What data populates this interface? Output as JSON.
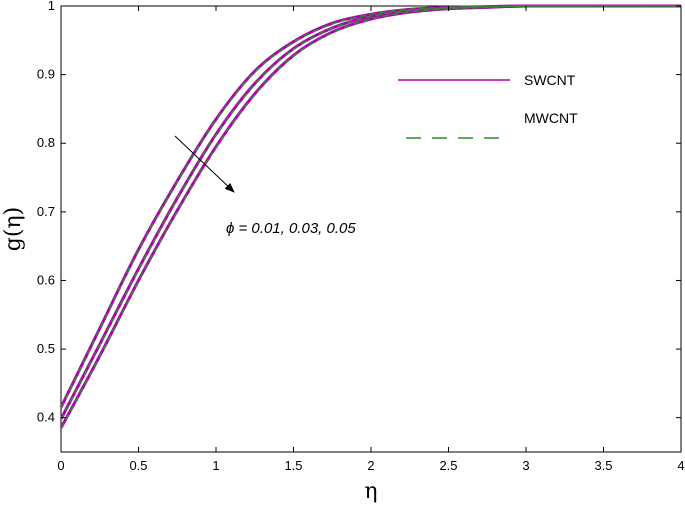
{
  "chart_data": {
    "type": "line",
    "xlabel": "η",
    "ylabel": "g(η)",
    "xlim": [
      0,
      4
    ],
    "ylim": [
      0.35,
      1
    ],
    "xticks": [
      "0",
      "0.5",
      "1",
      "1.5",
      "2",
      "2.5",
      "3",
      "3.5",
      "4"
    ],
    "yticks": [
      "0.4",
      "0.5",
      "0.6",
      "0.7",
      "0.8",
      "0.9",
      "1"
    ],
    "grid": false,
    "legend_position": "top-right",
    "annotation": "ϕ = 0.01, 0.03, 0.05",
    "x": [
      0,
      0.25,
      0.5,
      0.75,
      1,
      1.25,
      1.5,
      1.75,
      2,
      2.25,
      2.5,
      2.75,
      3,
      3.5,
      4
    ],
    "series": [
      {
        "name": "SWCNT",
        "group": "SWCNT",
        "phi": "0.01",
        "color": "#b000b0",
        "dash": "solid",
        "values": [
          0.415,
          0.53,
          0.645,
          0.745,
          0.835,
          0.905,
          0.948,
          0.975,
          0.988,
          0.995,
          0.998,
          0.999,
          1.0,
          1.0,
          1.0
        ]
      },
      {
        "name": "SWCNT",
        "group": "SWCNT",
        "phi": "0.03",
        "color": "#b000b0",
        "dash": "solid",
        "values": [
          0.398,
          0.507,
          0.617,
          0.72,
          0.813,
          0.887,
          0.938,
          0.968,
          0.985,
          0.993,
          0.997,
          0.999,
          1.0,
          1.0,
          1.0
        ]
      },
      {
        "name": "SWCNT",
        "group": "SWCNT",
        "phi": "0.05",
        "color": "#b000b0",
        "dash": "solid",
        "values": [
          0.385,
          0.49,
          0.6,
          0.702,
          0.795,
          0.872,
          0.928,
          0.962,
          0.981,
          0.991,
          0.996,
          0.998,
          1.0,
          1.0,
          1.0
        ]
      },
      {
        "name": "MWCNT",
        "group": "MWCNT",
        "phi": "0.01",
        "color": "#2e8b2e",
        "dash": "dashed",
        "values": [
          0.414,
          0.529,
          0.644,
          0.744,
          0.834,
          0.904,
          0.947,
          0.974,
          0.988,
          0.995,
          0.998,
          0.999,
          1.0,
          1.0,
          1.0
        ]
      },
      {
        "name": "MWCNT",
        "group": "MWCNT",
        "phi": "0.03",
        "color": "#2e8b2e",
        "dash": "dashed",
        "values": [
          0.397,
          0.506,
          0.616,
          0.719,
          0.812,
          0.886,
          0.937,
          0.968,
          0.985,
          0.993,
          0.997,
          0.999,
          1.0,
          1.0,
          1.0
        ]
      },
      {
        "name": "MWCNT",
        "group": "MWCNT",
        "phi": "0.05",
        "color": "#2e8b2e",
        "dash": "dashed",
        "values": [
          0.384,
          0.489,
          0.599,
          0.701,
          0.794,
          0.871,
          0.927,
          0.961,
          0.981,
          0.991,
          0.996,
          0.998,
          1.0,
          1.0,
          1.0
        ]
      }
    ],
    "legend": [
      {
        "label": "SWCNT",
        "color": "#b000b0",
        "dash": "solid"
      },
      {
        "label": "MWCNT",
        "color": "#2e8b2e",
        "dash": "dashed"
      }
    ]
  }
}
